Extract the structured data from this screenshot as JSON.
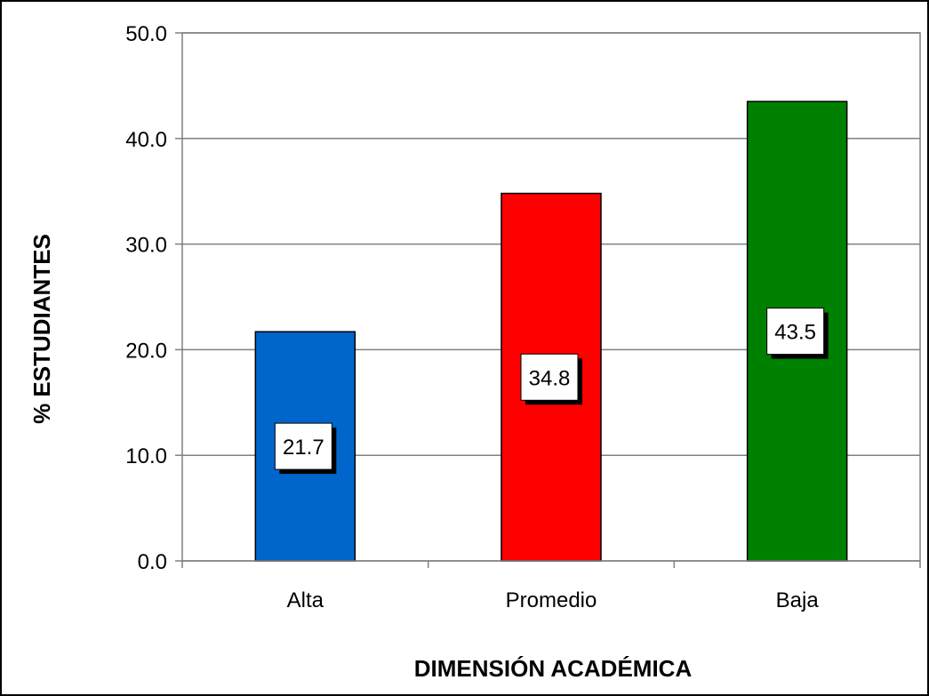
{
  "chart_data": {
    "type": "bar",
    "title": "",
    "xlabel": "DIMENSIÓN ACADÉMICA",
    "ylabel": "% ESTUDIANTES",
    "categories": [
      "Alta",
      "Promedio",
      "Baja"
    ],
    "values": [
      21.7,
      34.8,
      43.5
    ],
    "data_labels": [
      "21.7",
      "34.8",
      "43.5"
    ],
    "bar_colors": [
      "#0066CC",
      "#FF0000",
      "#008000"
    ],
    "ylim": [
      0,
      50
    ],
    "yticks": [
      0,
      10,
      20,
      30,
      40,
      50
    ],
    "ytick_labels": [
      "0.0",
      "10.0",
      "20.0",
      "30.0",
      "40.0",
      "50.0"
    ],
    "grid": true,
    "legend": "none"
  }
}
